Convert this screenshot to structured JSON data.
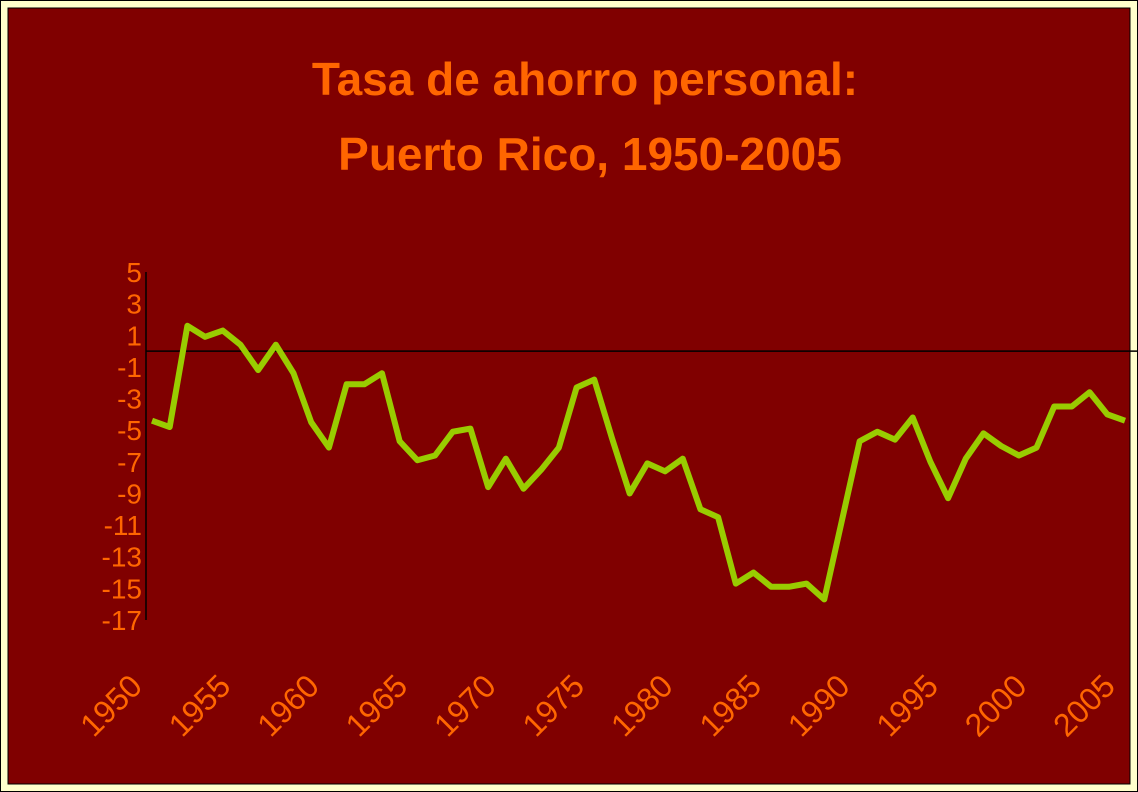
{
  "chart_data": {
    "type": "line",
    "title": [
      "Tasa de ahorro personal:",
      "Puerto Rico, 1950-2005"
    ],
    "x": [
      1950,
      1951,
      1952,
      1953,
      1954,
      1955,
      1956,
      1957,
      1958,
      1959,
      1960,
      1961,
      1962,
      1963,
      1964,
      1965,
      1966,
      1967,
      1968,
      1969,
      1970,
      1971,
      1972,
      1973,
      1974,
      1975,
      1976,
      1977,
      1978,
      1979,
      1980,
      1981,
      1982,
      1983,
      1984,
      1985,
      1986,
      1987,
      1988,
      1989,
      1990,
      1991,
      1992,
      1993,
      1994,
      1995,
      1996,
      1997,
      1998,
      1999,
      2000,
      2001,
      2002,
      2003,
      2004,
      2005
    ],
    "series": [
      {
        "color": "#99cc00",
        "values": [
          -4.4,
          -4.8,
          1.6,
          0.9,
          1.3,
          0.4,
          -1.2,
          0.4,
          -1.4,
          -4.5,
          -6.1,
          -2.1,
          -2.1,
          -1.4,
          -5.7,
          -6.9,
          -6.6,
          -5.1,
          -4.9,
          -8.6,
          -6.8,
          -8.7,
          -7.5,
          -6.1,
          -2.3,
          -1.8,
          -5.5,
          -9.0,
          -7.1,
          -7.6,
          -6.8,
          -10.0,
          -10.5,
          -14.7,
          -14.0,
          -14.9,
          -14.9,
          -14.7,
          -15.7,
          -10.7,
          -5.7,
          -5.1,
          -5.6,
          -4.2,
          -7.0,
          -9.3,
          -6.8,
          -5.2,
          -6.0,
          -6.6,
          -6.1,
          -3.5,
          -3.5,
          -2.6,
          -4.0,
          -4.4
        ]
      }
    ],
    "xlim": [
      1950,
      2005
    ],
    "xticks": [
      1950,
      1955,
      1960,
      1965,
      1970,
      1975,
      1980,
      1985,
      1990,
      1995,
      2000,
      2005
    ],
    "ylim": [
      -17,
      5
    ],
    "yticks": [
      5,
      3,
      1,
      -1,
      -3,
      -5,
      -7,
      -9,
      -11,
      -13,
      -15,
      -17
    ],
    "grid": false
  }
}
